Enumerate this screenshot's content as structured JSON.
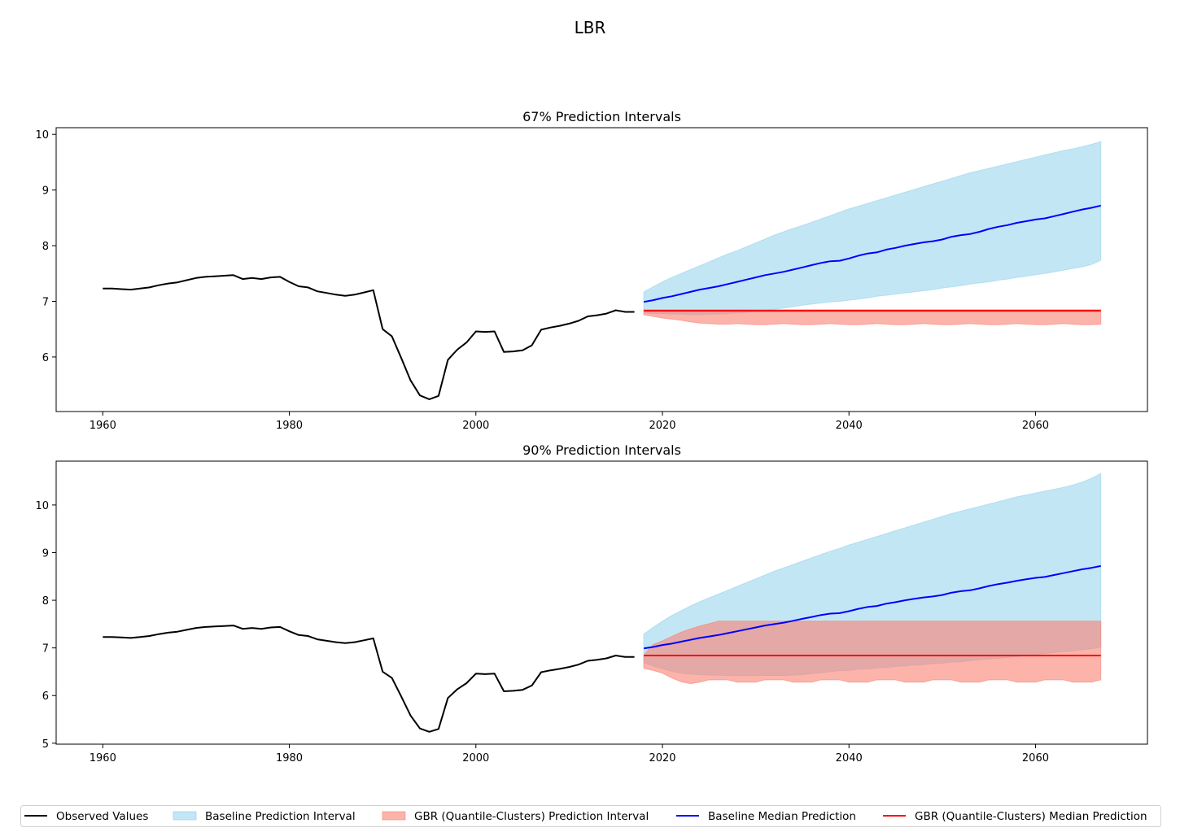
{
  "title": "LBR",
  "colors": {
    "observed": "#000000",
    "baseline_interval": "#87ceeb",
    "gbr_interval": "#fa8072",
    "baseline_median": "#0000ff",
    "gbr_median": "#ff0000"
  },
  "legend": {
    "placement": "bottom",
    "items": [
      {
        "label": "Observed Values",
        "kind": "line",
        "color": "#000000"
      },
      {
        "label": "Baseline Prediction Interval",
        "kind": "patch",
        "color": "#87ceeb"
      },
      {
        "label": "GBR (Quantile-Clusters) Prediction Interval",
        "kind": "patch",
        "color": "#fa8072"
      },
      {
        "label": "Baseline Median Prediction",
        "kind": "line",
        "color": "#0000ff"
      },
      {
        "label": "GBR (Quantile-Clusters) Median Prediction",
        "kind": "line",
        "color": "#ff0000"
      }
    ]
  },
  "chart_data": [
    {
      "type": "line",
      "title": "67% Prediction Intervals",
      "xlabel": "",
      "ylabel": "",
      "xlim": [
        1955,
        2072
      ],
      "ylim": [
        5.02,
        10.12
      ],
      "xticks": [
        1960,
        1980,
        2000,
        2020,
        2040,
        2060
      ],
      "yticks": [
        6,
        7,
        8,
        9,
        10
      ],
      "grid": false,
      "observed": {
        "x": [
          1960,
          1961,
          1962,
          1963,
          1964,
          1965,
          1966,
          1967,
          1968,
          1969,
          1970,
          1971,
          1972,
          1973,
          1974,
          1975,
          1976,
          1977,
          1978,
          1979,
          1980,
          1981,
          1982,
          1983,
          1984,
          1985,
          1986,
          1987,
          1988,
          1989,
          1990,
          1991,
          1992,
          1993,
          1994,
          1995,
          1996,
          1997,
          1998,
          1999,
          2000,
          2001,
          2002,
          2003,
          2004,
          2005,
          2006,
          2007,
          2008,
          2009,
          2010,
          2011,
          2012,
          2013,
          2014,
          2015,
          2016,
          2017
        ],
        "y": [
          7.23,
          7.23,
          7.22,
          7.21,
          7.23,
          7.25,
          7.29,
          7.32,
          7.34,
          7.38,
          7.42,
          7.44,
          7.45,
          7.46,
          7.47,
          7.4,
          7.42,
          7.4,
          7.43,
          7.44,
          7.35,
          7.27,
          7.25,
          7.18,
          7.15,
          7.12,
          7.1,
          7.12,
          7.16,
          7.2,
          6.5,
          6.37,
          5.98,
          5.58,
          5.31,
          5.24,
          5.3,
          5.95,
          6.13,
          6.26,
          6.46,
          6.45,
          6.46,
          6.09,
          6.1,
          6.12,
          6.21,
          6.49,
          6.53,
          6.56,
          6.6,
          6.65,
          6.73,
          6.75,
          6.78,
          6.84,
          6.81,
          6.81
        ]
      },
      "baseline_median": {
        "x_start": 2018,
        "x_end": 2067,
        "y": [
          6.99,
          7.02,
          7.06,
          7.09,
          7.13,
          7.17,
          7.21,
          7.24,
          7.27,
          7.31,
          7.35,
          7.39,
          7.43,
          7.47,
          7.5,
          7.53,
          7.57,
          7.61,
          7.65,
          7.69,
          7.72,
          7.73,
          7.77,
          7.82,
          7.86,
          7.88,
          7.93,
          7.96,
          8.0,
          8.03,
          8.06,
          8.08,
          8.11,
          8.16,
          8.19,
          8.21,
          8.25,
          8.3,
          8.34,
          8.37,
          8.41,
          8.44,
          8.47,
          8.49,
          8.53,
          8.57,
          8.61,
          8.65,
          8.68,
          8.72
        ]
      },
      "baseline_interval": {
        "x_start": 2018,
        "x_end": 2067,
        "lower": [
          6.79,
          6.78,
          6.78,
          6.77,
          6.77,
          6.76,
          6.76,
          6.77,
          6.77,
          6.78,
          6.79,
          6.8,
          6.82,
          6.84,
          6.86,
          6.88,
          6.9,
          6.93,
          6.95,
          6.97,
          6.99,
          7.0,
          7.02,
          7.04,
          7.06,
          7.09,
          7.11,
          7.13,
          7.15,
          7.17,
          7.19,
          7.21,
          7.24,
          7.26,
          7.28,
          7.31,
          7.33,
          7.35,
          7.38,
          7.4,
          7.43,
          7.45,
          7.48,
          7.5,
          7.53,
          7.56,
          7.59,
          7.62,
          7.66,
          7.74
        ],
        "upper": [
          7.17,
          7.26,
          7.35,
          7.43,
          7.5,
          7.57,
          7.64,
          7.71,
          7.78,
          7.85,
          7.91,
          7.98,
          8.05,
          8.12,
          8.19,
          8.25,
          8.31,
          8.36,
          8.42,
          8.48,
          8.54,
          8.6,
          8.66,
          8.71,
          8.76,
          8.81,
          8.86,
          8.91,
          8.96,
          9.01,
          9.06,
          9.11,
          9.16,
          9.21,
          9.26,
          9.31,
          9.35,
          9.39,
          9.43,
          9.47,
          9.51,
          9.55,
          9.59,
          9.63,
          9.67,
          9.71,
          9.74,
          9.78,
          9.82,
          9.87
        ]
      },
      "gbr_median": {
        "x_start": 2018,
        "x_end": 2067,
        "value": 6.83
      },
      "gbr_interval": {
        "x_start": 2018,
        "x_end": 2067,
        "lower": [
          6.76,
          6.73,
          6.7,
          6.68,
          6.66,
          6.63,
          6.61,
          6.6,
          6.59,
          6.59,
          6.6,
          6.59,
          6.58,
          6.58,
          6.59,
          6.6,
          6.59,
          6.58,
          6.58,
          6.59,
          6.6,
          6.59,
          6.58,
          6.58,
          6.59,
          6.6,
          6.59,
          6.58,
          6.58,
          6.59,
          6.6,
          6.59,
          6.58,
          6.58,
          6.59,
          6.6,
          6.59,
          6.58,
          6.58,
          6.59,
          6.6,
          6.59,
          6.58,
          6.58,
          6.59,
          6.6,
          6.59,
          6.58,
          6.58,
          6.59
        ],
        "upper": [
          6.85,
          6.85,
          6.85,
          6.85,
          6.85,
          6.85,
          6.85,
          6.85,
          6.85,
          6.85,
          6.85,
          6.85,
          6.85,
          6.85,
          6.85,
          6.85,
          6.85,
          6.85,
          6.85,
          6.85,
          6.85,
          6.85,
          6.85,
          6.85,
          6.85,
          6.85,
          6.85,
          6.85,
          6.85,
          6.85,
          6.85,
          6.85,
          6.85,
          6.85,
          6.85,
          6.85,
          6.85,
          6.85,
          6.85,
          6.85,
          6.85,
          6.85,
          6.85,
          6.85,
          6.85,
          6.85,
          6.85,
          6.85,
          6.85,
          6.85
        ]
      }
    },
    {
      "type": "line",
      "title": "90% Prediction Intervals",
      "xlabel": "",
      "ylabel": "",
      "xlim": [
        1955,
        2072
      ],
      "ylim": [
        4.98,
        10.92
      ],
      "xticks": [
        1960,
        1980,
        2000,
        2020,
        2040,
        2060
      ],
      "yticks": [
        5,
        6,
        7,
        8,
        9,
        10
      ],
      "grid": false,
      "observed": {
        "x": [
          1960,
          1961,
          1962,
          1963,
          1964,
          1965,
          1966,
          1967,
          1968,
          1969,
          1970,
          1971,
          1972,
          1973,
          1974,
          1975,
          1976,
          1977,
          1978,
          1979,
          1980,
          1981,
          1982,
          1983,
          1984,
          1985,
          1986,
          1987,
          1988,
          1989,
          1990,
          1991,
          1992,
          1993,
          1994,
          1995,
          1996,
          1997,
          1998,
          1999,
          2000,
          2001,
          2002,
          2003,
          2004,
          2005,
          2006,
          2007,
          2008,
          2009,
          2010,
          2011,
          2012,
          2013,
          2014,
          2015,
          2016,
          2017
        ],
        "y": [
          7.23,
          7.23,
          7.22,
          7.21,
          7.23,
          7.25,
          7.29,
          7.32,
          7.34,
          7.38,
          7.42,
          7.44,
          7.45,
          7.46,
          7.47,
          7.4,
          7.42,
          7.4,
          7.43,
          7.44,
          7.35,
          7.27,
          7.25,
          7.18,
          7.15,
          7.12,
          7.1,
          7.12,
          7.16,
          7.2,
          6.5,
          6.37,
          5.98,
          5.58,
          5.31,
          5.24,
          5.3,
          5.95,
          6.13,
          6.26,
          6.46,
          6.45,
          6.46,
          6.09,
          6.1,
          6.12,
          6.21,
          6.49,
          6.53,
          6.56,
          6.6,
          6.65,
          6.73,
          6.75,
          6.78,
          6.84,
          6.81,
          6.81
        ]
      },
      "baseline_median": {
        "x_start": 2018,
        "x_end": 2067,
        "y": [
          6.99,
          7.02,
          7.06,
          7.09,
          7.13,
          7.17,
          7.21,
          7.24,
          7.27,
          7.31,
          7.35,
          7.39,
          7.43,
          7.47,
          7.5,
          7.53,
          7.57,
          7.61,
          7.65,
          7.69,
          7.72,
          7.73,
          7.77,
          7.82,
          7.86,
          7.88,
          7.93,
          7.96,
          8.0,
          8.03,
          8.06,
          8.08,
          8.11,
          8.16,
          8.19,
          8.21,
          8.25,
          8.3,
          8.34,
          8.37,
          8.41,
          8.44,
          8.47,
          8.49,
          8.53,
          8.57,
          8.61,
          8.65,
          8.68,
          8.72
        ]
      },
      "baseline_interval": {
        "x_start": 2018,
        "x_end": 2067,
        "lower": [
          6.69,
          6.62,
          6.56,
          6.51,
          6.47,
          6.45,
          6.44,
          6.43,
          6.43,
          6.42,
          6.42,
          6.42,
          6.42,
          6.42,
          6.42,
          6.42,
          6.43,
          6.44,
          6.46,
          6.48,
          6.5,
          6.52,
          6.53,
          6.55,
          6.56,
          6.58,
          6.59,
          6.61,
          6.62,
          6.64,
          6.65,
          6.67,
          6.68,
          6.7,
          6.71,
          6.73,
          6.75,
          6.77,
          6.78,
          6.8,
          6.82,
          6.84,
          6.86,
          6.88,
          6.9,
          6.92,
          6.94,
          6.96,
          6.98,
          7.02
        ],
        "upper": [
          7.29,
          7.43,
          7.56,
          7.68,
          7.78,
          7.88,
          7.97,
          8.05,
          8.13,
          8.21,
          8.29,
          8.37,
          8.45,
          8.53,
          8.61,
          8.68,
          8.75,
          8.82,
          8.89,
          8.96,
          9.03,
          9.09,
          9.16,
          9.22,
          9.28,
          9.34,
          9.4,
          9.46,
          9.52,
          9.58,
          9.64,
          9.7,
          9.76,
          9.82,
          9.87,
          9.92,
          9.97,
          10.02,
          10.07,
          10.12,
          10.17,
          10.21,
          10.25,
          10.29,
          10.33,
          10.37,
          10.42,
          10.48,
          10.56,
          10.66
        ]
      },
      "gbr_median": {
        "x_start": 2018,
        "x_end": 2067,
        "value": 6.84
      },
      "gbr_interval": {
        "x_start": 2018,
        "x_end": 2067,
        "lower": [
          6.57,
          6.53,
          6.47,
          6.37,
          6.29,
          6.25,
          6.28,
          6.33,
          6.33,
          6.33,
          6.28,
          6.28,
          6.28,
          6.33,
          6.33,
          6.33,
          6.28,
          6.28,
          6.28,
          6.33,
          6.33,
          6.33,
          6.28,
          6.28,
          6.28,
          6.33,
          6.33,
          6.33,
          6.28,
          6.28,
          6.28,
          6.33,
          6.33,
          6.33,
          6.28,
          6.28,
          6.28,
          6.33,
          6.33,
          6.33,
          6.28,
          6.28,
          6.28,
          6.33,
          6.33,
          6.33,
          6.28,
          6.28,
          6.28,
          6.33
        ],
        "upper": [
          6.85,
          7.07,
          7.15,
          7.24,
          7.33,
          7.4,
          7.46,
          7.51,
          7.56,
          7.56,
          7.56,
          7.56,
          7.56,
          7.56,
          7.56,
          7.56,
          7.56,
          7.56,
          7.56,
          7.56,
          7.56,
          7.56,
          7.56,
          7.56,
          7.56,
          7.56,
          7.56,
          7.56,
          7.56,
          7.56,
          7.56,
          7.56,
          7.56,
          7.56,
          7.56,
          7.56,
          7.56,
          7.56,
          7.56,
          7.56,
          7.56,
          7.56,
          7.56,
          7.56,
          7.56,
          7.56,
          7.56,
          7.56,
          7.56,
          7.56
        ]
      }
    }
  ]
}
